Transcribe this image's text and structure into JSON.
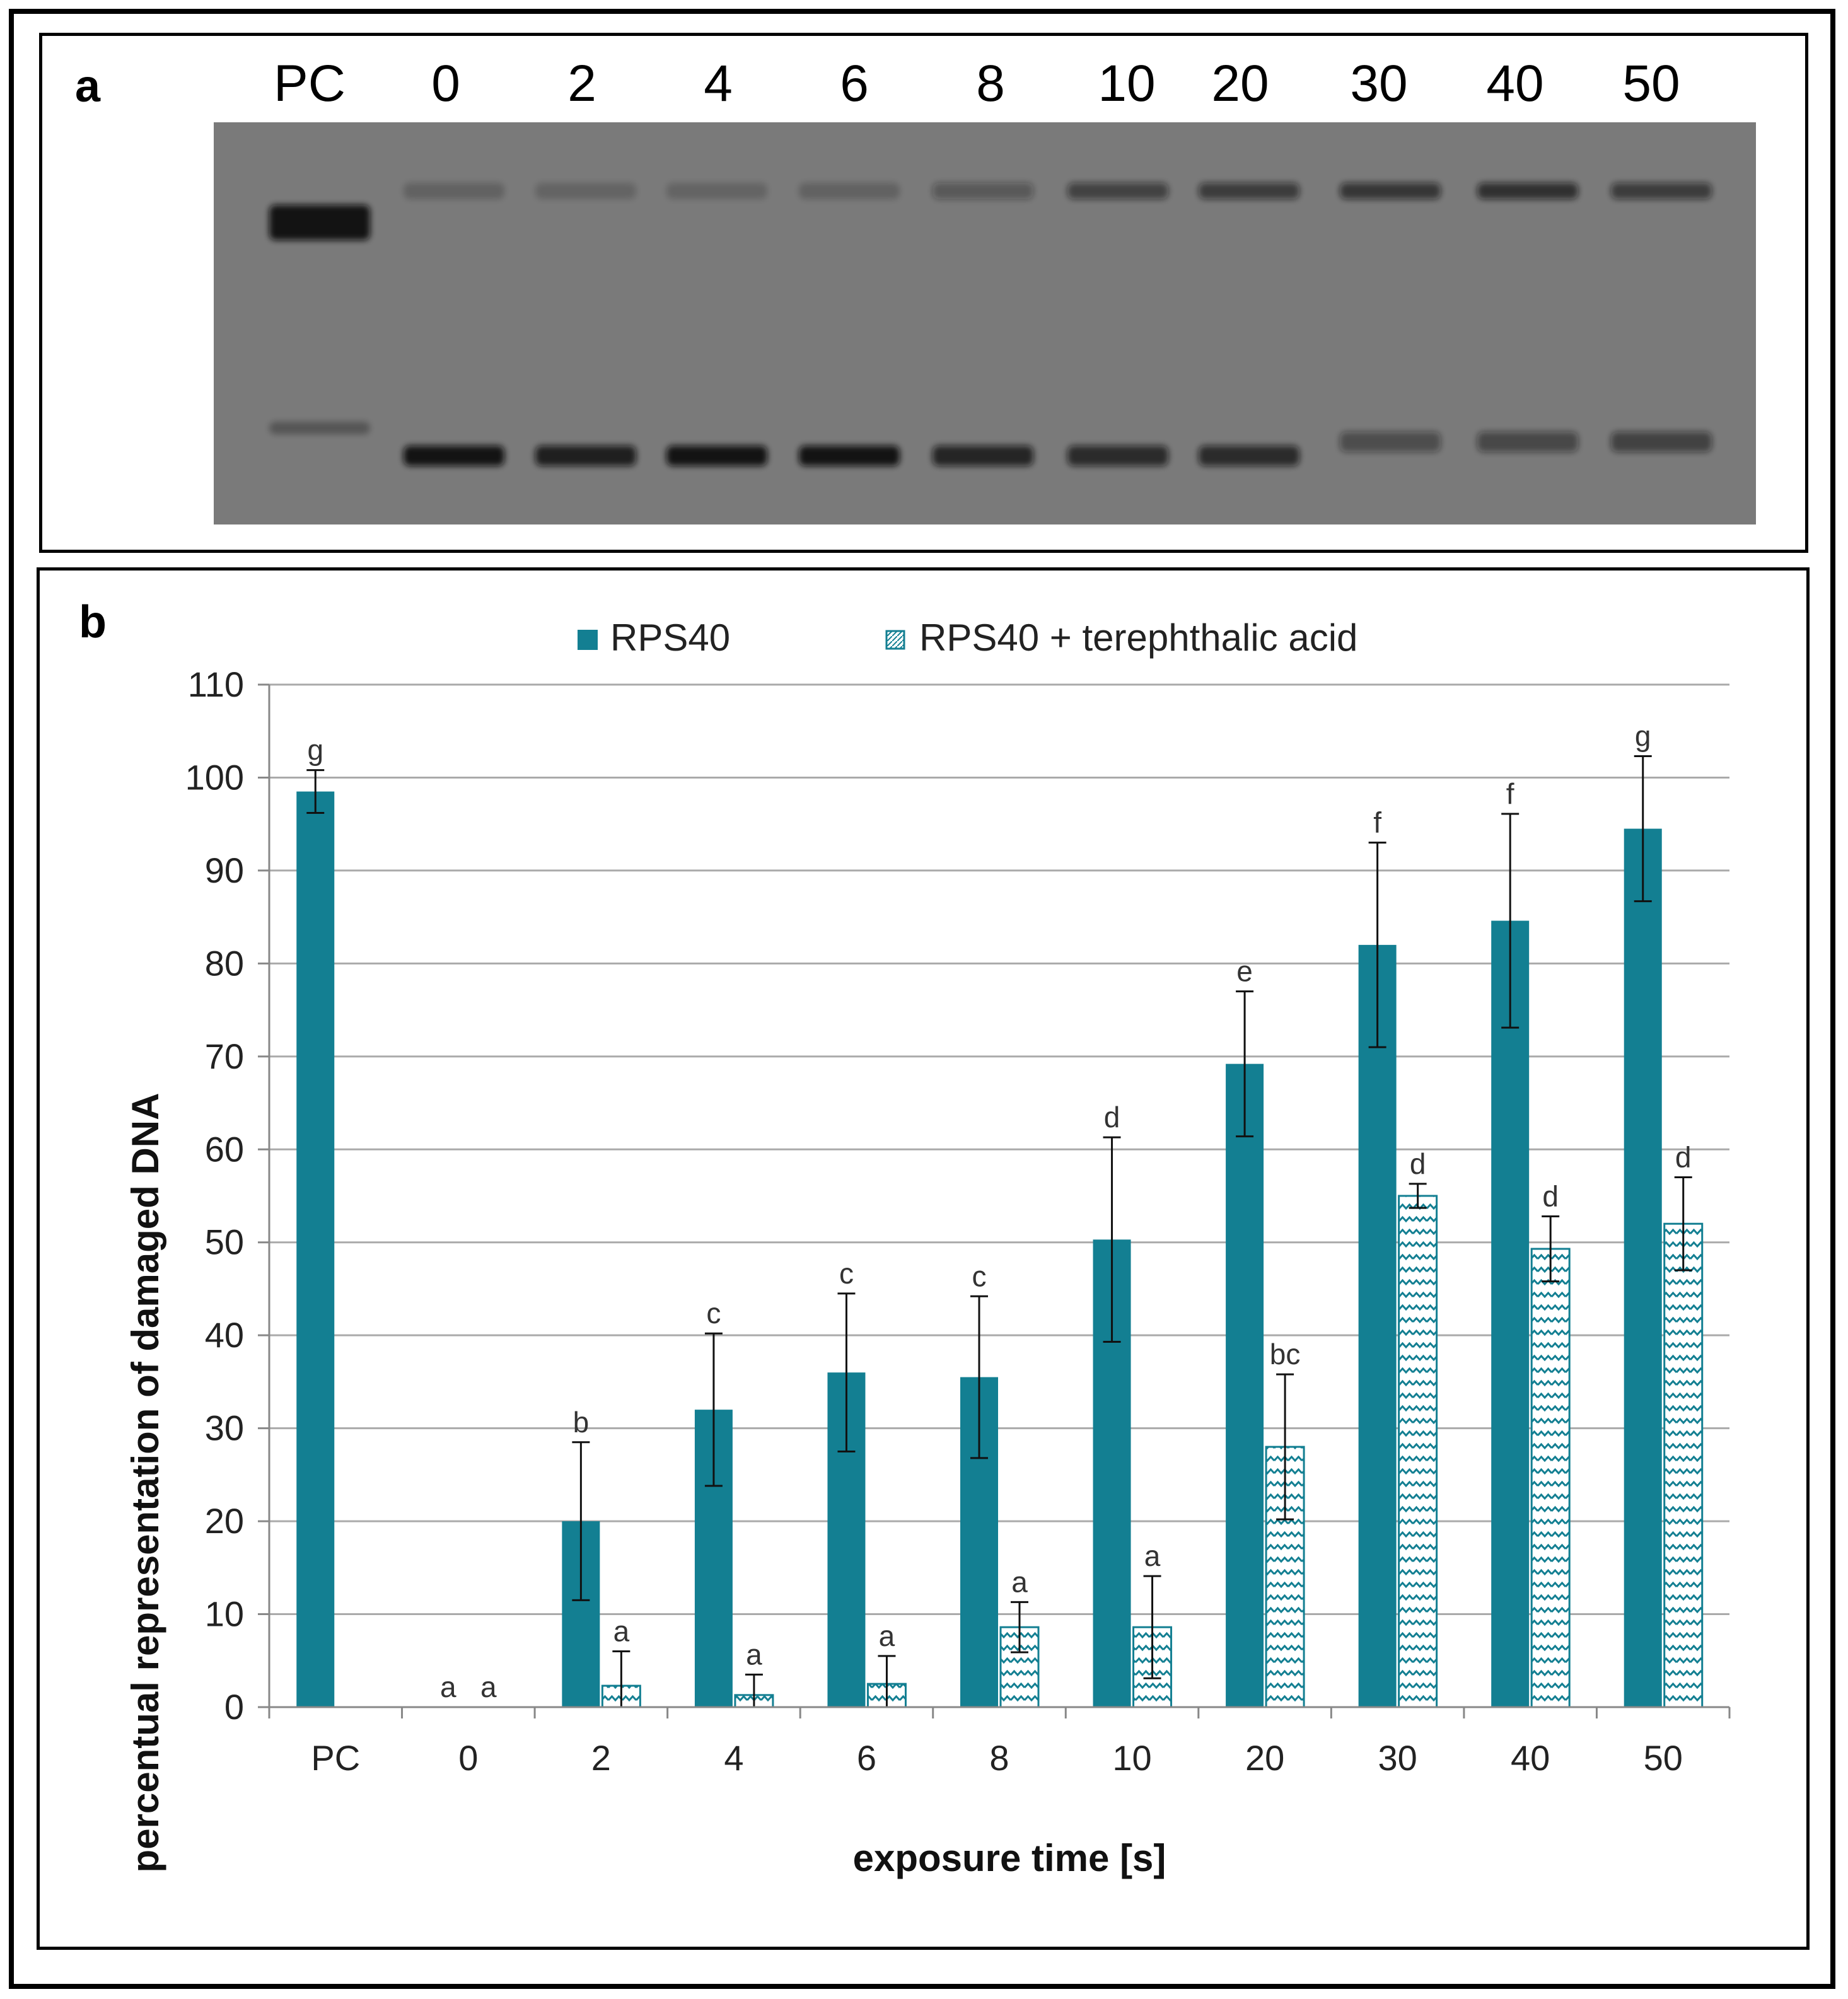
{
  "gel": {
    "panel_label": "a",
    "lanes": [
      "PC",
      "0",
      "2",
      "4",
      "6",
      "8",
      "10",
      "20",
      "30",
      "40",
      "50"
    ]
  },
  "chart_data": {
    "type": "bar",
    "panel_label": "b",
    "categories": [
      "PC",
      "0",
      "2",
      "4",
      "6",
      "8",
      "10",
      "20",
      "30",
      "40",
      "50"
    ],
    "series": [
      {
        "name": "RPS40",
        "color": "#137f92",
        "pattern": "solid",
        "values": [
          98.5,
          0,
          20,
          32,
          36,
          35.5,
          50.3,
          69.2,
          82,
          84.6,
          94.5
        ],
        "errors": [
          2.3,
          0,
          8.5,
          8.2,
          8.5,
          8.7,
          11,
          7.8,
          11,
          11.5,
          7.8
        ],
        "labels": [
          "g",
          "a",
          "b",
          "c",
          "c",
          "c",
          "d",
          "e",
          "f",
          "f",
          "g"
        ]
      },
      {
        "name": "RPS40 + terephthalic acid",
        "color": "#137f92",
        "pattern": "zigzag",
        "values": [
          null,
          0,
          2.3,
          1.3,
          2.5,
          8.6,
          8.6,
          28,
          55,
          49.3,
          52
        ],
        "errors": [
          null,
          0,
          3.7,
          2.2,
          3,
          2.7,
          5.5,
          7.8,
          1.3,
          3.5,
          5
        ],
        "labels": [
          null,
          "a",
          "a",
          "a",
          "a",
          "a",
          "a",
          "bc",
          "d",
          "d",
          "d"
        ]
      }
    ],
    "xlabel": "exposure time [s]",
    "ylabel": "percentual representation of damaged DNA",
    "ylim": [
      0,
      110
    ],
    "yticks": [
      0,
      10,
      20,
      30,
      40,
      50,
      60,
      70,
      80,
      90,
      100,
      110
    ],
    "grid": true,
    "legend": "top"
  }
}
